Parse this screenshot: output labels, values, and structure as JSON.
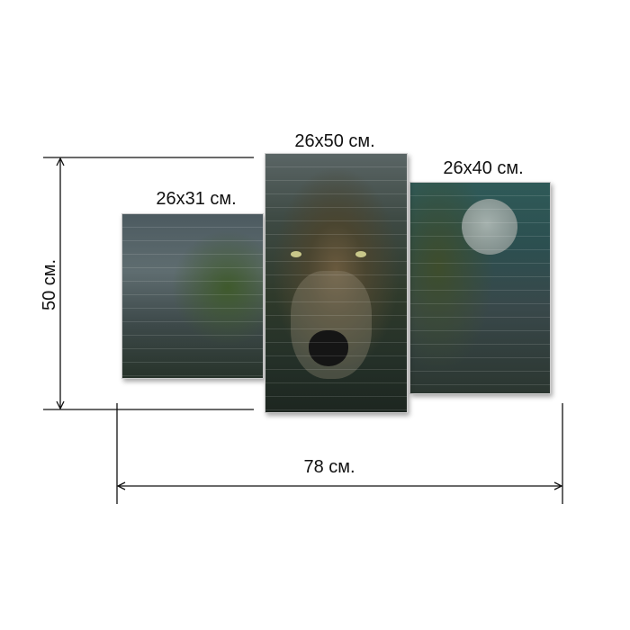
{
  "panels": [
    {
      "label": "26x31 см."
    },
    {
      "label": "26x50 см."
    },
    {
      "label": "26x40 см."
    }
  ],
  "dimensions": {
    "height": "50 см.",
    "width": "78 см."
  }
}
